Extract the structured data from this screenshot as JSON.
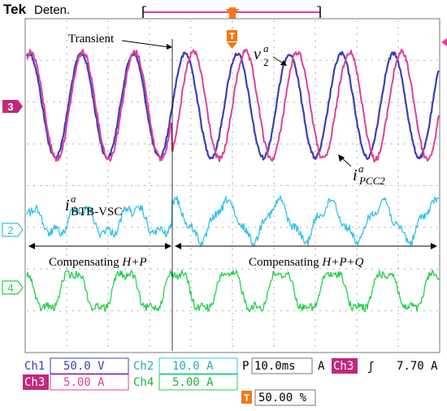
{
  "header": {
    "brand": "Tek",
    "status": "Deten.",
    "trigger_marker": "T"
  },
  "channels": {
    "ch3_marker": "3",
    "ch2_marker": "2",
    "ch4_marker": "4"
  },
  "annotations": {
    "transient": "Transient",
    "v2_sym": "v",
    "v2_sub": "2",
    "v2_sup": "a",
    "ipcc_sym": "i",
    "ipcc_sub": "PCC2",
    "ipcc_sup": "a",
    "ibtb_sym": "i",
    "ibtb_sub": "BTB-VSC",
    "ibtb_sup": "a",
    "comp_hp_prefix": "Compensating ",
    "comp_hp_suffix": "H+P",
    "comp_hpq_prefix": "Compensating ",
    "comp_hpq_suffix": "H+P+Q"
  },
  "readout": {
    "ch1_label": "Ch1",
    "ch1_value": "50.0 V",
    "ch2_label": "Ch2",
    "ch2_value": "10.0 A",
    "ch3_label": "Ch3",
    "ch3_value": "5.00 A",
    "ch4_label": "Ch4",
    "ch4_value": "5.00 A",
    "timebase_prefix": "P",
    "timebase_value": "10.0ms",
    "trigger_mode": "A",
    "trigger_channel": "Ch3",
    "trigger_slope": "ʃ",
    "trigger_level": "7.70 A",
    "trigger_pos_icon": "T",
    "trigger_pos_value": "50.00 %"
  },
  "colors": {
    "ch1": "#3d3db8",
    "ch2": "#33c3e8",
    "ch3": "#e0409a",
    "ch4": "#22d24a",
    "trigger": "#f07818"
  }
}
